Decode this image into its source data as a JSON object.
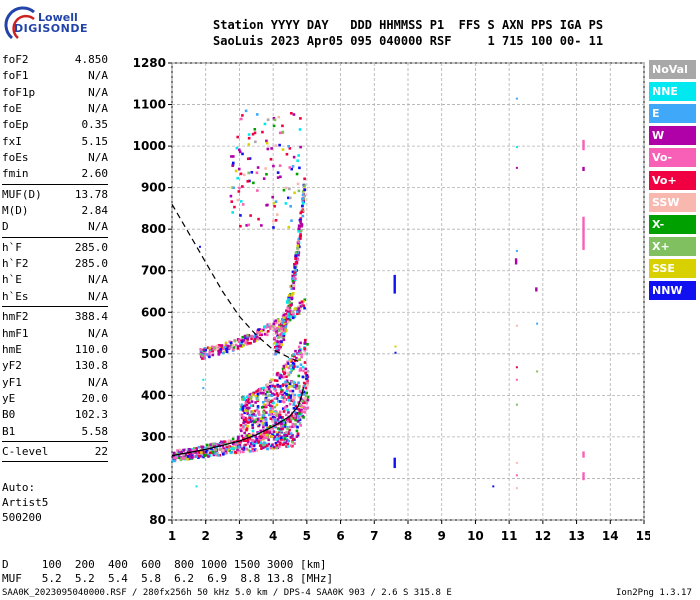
{
  "logo": {
    "line1": "Lowell",
    "line2": "DIGISONDE"
  },
  "header": {
    "line1": "Station YYYY DAY   DDD HHMMSS P1  FFS S AXN PPS IGA PS",
    "line2": "SaoLuis 2023 Apr05 095 040000 RSF     1 715 100 00- 11"
  },
  "params": [
    {
      "group": [
        {
          "name": "foF2",
          "value": "4.850"
        },
        {
          "name": "foF1",
          "value": "N/A"
        },
        {
          "name": "foF1p",
          "value": "N/A"
        },
        {
          "name": "foE",
          "value": "N/A"
        },
        {
          "name": "foEp",
          "value": "0.35"
        },
        {
          "name": "fxI",
          "value": "5.15"
        },
        {
          "name": "foEs",
          "value": "N/A"
        },
        {
          "name": "fmin",
          "value": "2.60"
        }
      ]
    },
    {
      "group": [
        {
          "name": "MUF(D)",
          "value": "13.78"
        },
        {
          "name": "M(D)",
          "value": "2.84"
        },
        {
          "name": "D",
          "value": "N/A"
        }
      ]
    },
    {
      "group": [
        {
          "name": "h`F",
          "value": "285.0"
        },
        {
          "name": "h`F2",
          "value": "285.0"
        },
        {
          "name": "h`E",
          "value": "N/A"
        },
        {
          "name": "h`Es",
          "value": "N/A"
        }
      ]
    },
    {
      "group": [
        {
          "name": "hmF2",
          "value": "388.4"
        },
        {
          "name": "hmF1",
          "value": "N/A"
        },
        {
          "name": "hmE",
          "value": "110.0"
        },
        {
          "name": "yF2",
          "value": "130.8"
        },
        {
          "name": "yF1",
          "value": "N/A"
        },
        {
          "name": "yE",
          "value": "20.0"
        },
        {
          "name": "B0",
          "value": "102.3"
        },
        {
          "name": "B1",
          "value": "5.58"
        }
      ]
    },
    {
      "group": [
        {
          "name": "C-level",
          "value": "22"
        }
      ]
    }
  ],
  "auto": [
    "Auto:",
    "Artist5",
    "500200"
  ],
  "legend": [
    {
      "label": "NoVal",
      "color": "#a8a8a8"
    },
    {
      "label": "NNE",
      "color": "#00e8f0"
    },
    {
      "label": "E",
      "color": "#40a8f8"
    },
    {
      "label": "W",
      "color": "#b000a8"
    },
    {
      "label": "Vo-",
      "color": "#f860b8"
    },
    {
      "label": "Vo+",
      "color": "#f00040"
    },
    {
      "label": "SSW",
      "color": "#f8b8b0"
    },
    {
      "label": "X-",
      "color": "#00a000"
    },
    {
      "label": "X+",
      "color": "#80c060"
    },
    {
      "label": "SSE",
      "color": "#d8d000"
    },
    {
      "label": "NNW",
      "color": "#1010f0"
    }
  ],
  "chart_data": {
    "type": "scatter",
    "xlim": [
      1,
      15
    ],
    "ylim": [
      80,
      1280
    ],
    "x_ticks": [
      "1",
      "2",
      "3",
      "4",
      "5",
      "6",
      "7",
      "8",
      "9",
      "10",
      "11",
      "12",
      "13",
      "14",
      "15"
    ],
    "y_ticks": [
      "80",
      "200",
      "300",
      "400",
      "500",
      "600",
      "700",
      "800",
      "900",
      "1000",
      "1100",
      "1280"
    ],
    "grid": true,
    "clusters": [
      {
        "f": [
          1.0,
          5.0
        ],
        "h": [
          240,
          320
        ],
        "n": 600,
        "trend": "o-lower"
      },
      {
        "f": [
          3.0,
          5.0
        ],
        "h": [
          300,
          500
        ],
        "n": 500,
        "trend": "o-upper"
      },
      {
        "f": [
          4.0,
          4.9
        ],
        "h": [
          500,
          900
        ],
        "n": 280,
        "trend": "second"
      },
      {
        "f": [
          1.8,
          4.9
        ],
        "h": [
          480,
          620
        ],
        "n": 260,
        "trend": "x-trace"
      },
      {
        "f": [
          2.7,
          4.8
        ],
        "h": [
          800,
          1100
        ],
        "n": 120,
        "trend": "high"
      }
    ],
    "vertical_marks": [
      {
        "f": 7.6,
        "h": [
          645,
          690
        ],
        "color": "#1010f0"
      },
      {
        "f": 7.6,
        "h": [
          225,
          250
        ],
        "color": "#1010f0"
      },
      {
        "f": 13.2,
        "h": [
          990,
          1015
        ],
        "color": "#f860b8"
      },
      {
        "f": 13.2,
        "h": [
          940,
          950
        ],
        "color": "#b000a8"
      },
      {
        "f": 13.2,
        "h": [
          750,
          830
        ],
        "color": "#f860b8"
      },
      {
        "f": 13.2,
        "h": [
          250,
          265
        ],
        "color": "#f860b8"
      },
      {
        "f": 13.2,
        "h": [
          195,
          215
        ],
        "color": "#f860b8"
      },
      {
        "f": 11.2,
        "h": [
          715,
          730
        ],
        "color": "#b000a8"
      },
      {
        "f": 11.8,
        "h": [
          650,
          660
        ],
        "color": "#b000a8"
      }
    ],
    "stray_points": [
      {
        "f": 11.2,
        "h": 1130,
        "color": "#40a8f8"
      },
      {
        "f": 11.2,
        "h": 1000,
        "color": "#00e8f0"
      },
      {
        "f": 11.2,
        "h": 950,
        "color": "#b000a8"
      },
      {
        "f": 11.2,
        "h": 750,
        "color": "#40a8f8"
      },
      {
        "f": 11.2,
        "h": 570,
        "color": "#f8b8b0"
      },
      {
        "f": 11.2,
        "h": 470,
        "color": "#f00040"
      },
      {
        "f": 11.2,
        "h": 440,
        "color": "#f860b8"
      },
      {
        "f": 11.2,
        "h": 380,
        "color": "#80c060"
      },
      {
        "f": 11.2,
        "h": 240,
        "color": "#f8b8b0"
      },
      {
        "f": 11.2,
        "h": 210,
        "color": "#f860b8"
      },
      {
        "f": 11.2,
        "h": 175,
        "color": "#f8b8b0"
      },
      {
        "f": 11.8,
        "h": 575,
        "color": "#40a8f8"
      },
      {
        "f": 11.8,
        "h": 460,
        "color": "#80c060"
      },
      {
        "f": 10.5,
        "h": 180,
        "color": "#1010f0"
      },
      {
        "f": 7.6,
        "h": 520,
        "color": "#d8d000"
      },
      {
        "f": 7.6,
        "h": 505,
        "color": "#1010f0"
      },
      {
        "f": 1.9,
        "h": 440,
        "color": "#00e8f0"
      },
      {
        "f": 1.9,
        "h": 420,
        "color": "#40a8f8"
      },
      {
        "f": 1.7,
        "h": 180,
        "color": "#00e8f0"
      },
      {
        "f": 1.8,
        "h": 760,
        "color": "#1010f0"
      }
    ],
    "dashed_curve": [
      [
        1.0,
        860
      ],
      [
        1.5,
        790
      ],
      [
        2.0,
        720
      ],
      [
        2.5,
        650
      ],
      [
        3.0,
        590
      ],
      [
        3.5,
        545
      ],
      [
        4.0,
        510
      ],
      [
        4.5,
        490
      ],
      [
        4.8,
        480
      ]
    ],
    "solid_curve": [
      [
        1.0,
        255
      ],
      [
        2.0,
        270
      ],
      [
        3.0,
        290
      ],
      [
        3.5,
        305
      ],
      [
        4.0,
        325
      ],
      [
        4.5,
        350
      ],
      [
        4.75,
        375
      ],
      [
        4.85,
        400
      ],
      [
        4.9,
        420
      ]
    ]
  },
  "mufd": {
    "row1": "D     100  200  400  600  800 1000 1500 3000 [km]",
    "row2": "MUF   5.2  5.2  5.4  5.8  6.2  6.9  8.8 13.8 [MHz]"
  },
  "footer": {
    "left": "SAA0K_2023095040000.RSF / 280fx256h 50 kHz 5.0 km / DPS-4 SAA0K 903 / 2.6 S 315.8 E",
    "right": "Ion2Png 1.3.17"
  }
}
